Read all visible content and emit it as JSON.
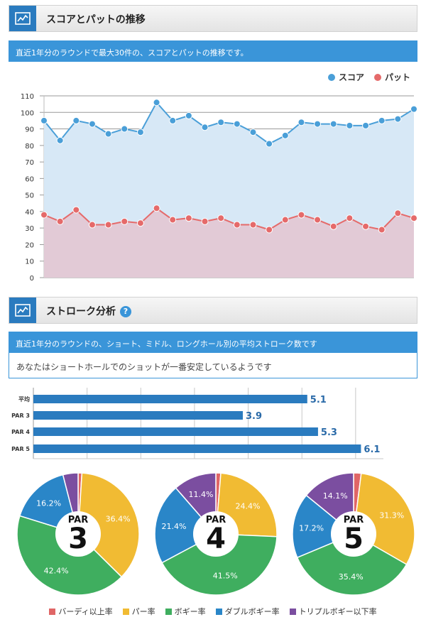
{
  "section1": {
    "title": "スコアとパットの推移",
    "description": "直近1年分のラウンドで最大30件の、スコアとパットの推移です。",
    "legend": [
      {
        "label": "スコア",
        "color": "#4a9fd8"
      },
      {
        "label": "パット",
        "color": "#e56a6a"
      }
    ]
  },
  "section2": {
    "title": "ストローク分析",
    "description": "直近1年分のラウンドの、ショート、ミドル、ロングホール別の平均ストローク数です",
    "message": "あなたはショートホールでのショットが一番安定しているようです"
  },
  "pie_legend": [
    {
      "label": "バーディ以上率",
      "color": "#e06666"
    },
    {
      "label": "パー率",
      "color": "#f1bb33"
    },
    {
      "label": "ボギー率",
      "color": "#3fae5f"
    },
    {
      "label": "ダブルボギー率",
      "color": "#2a86c8"
    },
    {
      "label": "トリプルボギー以下率",
      "color": "#7b4ea0"
    }
  ],
  "chart_data": [
    {
      "type": "line",
      "ylim": [
        0,
        110
      ],
      "yticks": [
        0,
        10,
        20,
        30,
        40,
        50,
        60,
        70,
        80,
        90,
        100,
        110
      ],
      "series": [
        {
          "name": "スコア",
          "color": "#4a9fd8",
          "fill": "#d7e8f6",
          "values": [
            95,
            83,
            95,
            93,
            87,
            90,
            88,
            106,
            95,
            98,
            91,
            94,
            93,
            88,
            81,
            86,
            94,
            93,
            93,
            92,
            92,
            95,
            96,
            102
          ]
        },
        {
          "name": "パット",
          "color": "#e56a6a",
          "fill": "#e3c7d3",
          "values": [
            38,
            34,
            41,
            32,
            32,
            34,
            33,
            42,
            35,
            36,
            34,
            36,
            32,
            32,
            29,
            35,
            38,
            35,
            31,
            36,
            31,
            29,
            39,
            36
          ]
        }
      ]
    },
    {
      "type": "bar",
      "orientation": "horizontal",
      "categories": [
        "平均",
        "PAR 3",
        "PAR 4",
        "PAR 5"
      ],
      "values": [
        5.1,
        3.9,
        5.3,
        6.1
      ],
      "value_labels": [
        "5.1",
        "3.9",
        "5.3",
        "6.1"
      ],
      "color": "#2a7bbf",
      "xlim": [
        0,
        6.2
      ]
    },
    {
      "type": "pie",
      "center_label": "PAR",
      "center_number": "3",
      "values": [
        1.0,
        36.4,
        42.4,
        16.2,
        4.0
      ],
      "labels": [
        "",
        "36.4%",
        "42.4%",
        "16.2%",
        ""
      ],
      "colors": [
        "#e06666",
        "#f1bb33",
        "#3fae5f",
        "#2a86c8",
        "#7b4ea0"
      ]
    },
    {
      "type": "pie",
      "center_label": "PAR",
      "center_number": "4",
      "values": [
        1.3,
        24.4,
        41.5,
        21.4,
        11.4
      ],
      "labels": [
        "",
        "24.4%",
        "41.5%",
        "21.4%",
        "11.4%"
      ],
      "colors": [
        "#e06666",
        "#f1bb33",
        "#3fae5f",
        "#2a86c8",
        "#7b4ea0"
      ]
    },
    {
      "type": "pie",
      "center_label": "PAR",
      "center_number": "5",
      "values": [
        2.0,
        31.3,
        35.4,
        17.2,
        14.1
      ],
      "labels": [
        "",
        "31.3%",
        "35.4%",
        "17.2%",
        "14.1%"
      ],
      "colors": [
        "#e06666",
        "#f1bb33",
        "#3fae5f",
        "#2a86c8",
        "#7b4ea0"
      ]
    }
  ]
}
